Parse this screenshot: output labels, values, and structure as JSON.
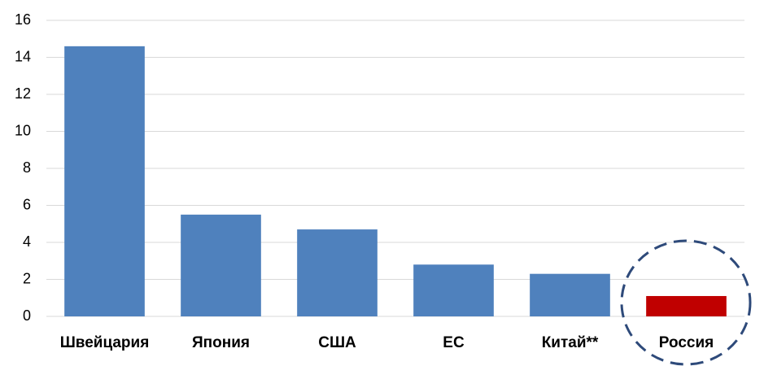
{
  "chart_data": {
    "type": "bar",
    "categories": [
      "Швейцария",
      "Япония",
      "США",
      "ЕС",
      "Китай**",
      "Россия"
    ],
    "values": [
      14.6,
      5.5,
      4.7,
      2.8,
      2.3,
      1.1
    ],
    "colors": [
      "#4f81bd",
      "#4f81bd",
      "#4f81bd",
      "#4f81bd",
      "#4f81bd",
      "#c00000"
    ],
    "ylim": [
      0,
      16
    ],
    "yticks": [
      0,
      2,
      4,
      6,
      8,
      10,
      12,
      14,
      16
    ],
    "grid": true
  }
}
